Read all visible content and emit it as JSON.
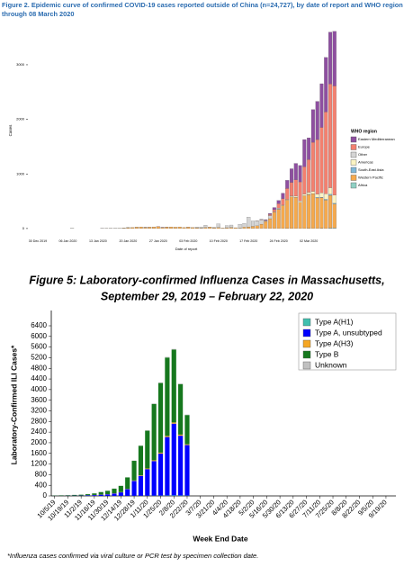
{
  "chart_data": [
    {
      "type": "bar",
      "stacked": true,
      "title": "Figure 2. Epidemic curve of confirmed COVID-19 cases reported outside of China (n=24,727), by date of report and WHO region through 08 March 2020",
      "xlabel": "Date of report",
      "ylabel": "Cases",
      "legend_title": "WHO region",
      "legend": "right",
      "categories": [
        "30 Dec 2019",
        null,
        null,
        null,
        null,
        null,
        null,
        "06 Jan 2020",
        null,
        null,
        null,
        null,
        null,
        null,
        "13 Jan 2020",
        null,
        null,
        null,
        null,
        null,
        null,
        "20 Jan 2020",
        null,
        null,
        null,
        null,
        null,
        null,
        "27 Jan 2020",
        null,
        null,
        null,
        null,
        null,
        null,
        "03 Feb 2020",
        null,
        null,
        null,
        null,
        null,
        null,
        "10 Feb 2020",
        null,
        null,
        null,
        null,
        null,
        null,
        "17 Feb 2020",
        null,
        null,
        null,
        null,
        null,
        null,
        "24 Feb 2020",
        null,
        null,
        null,
        null,
        null,
        null,
        "02 Mar 2020",
        null,
        null,
        null,
        null,
        null,
        null
      ],
      "ylim": [
        -150,
        3700
      ],
      "yticks": [
        0,
        1000,
        2000,
        3000
      ],
      "series": [
        {
          "name": "Eastern Mediterranean",
          "color": "#8e4fa0",
          "values": [
            0,
            0,
            0,
            0,
            0,
            0,
            0,
            0,
            0,
            0,
            0,
            0,
            0,
            0,
            0,
            0,
            0,
            0,
            0,
            0,
            0,
            0,
            0,
            0,
            0,
            0,
            0,
            0,
            0,
            4,
            0,
            0,
            0,
            0,
            0,
            0,
            0,
            0,
            0,
            0,
            0,
            0,
            0,
            0,
            0,
            0,
            0,
            0,
            0,
            0,
            0,
            0,
            2,
            10,
            20,
            40,
            60,
            100,
            150,
            250,
            300,
            300,
            500,
            400,
            600,
            700,
            800,
            1000,
            950,
            1000
          ]
        },
        {
          "name": "Europe",
          "color": "#f3806f",
          "values": [
            0,
            0,
            0,
            0,
            0,
            0,
            0,
            0,
            0,
            0,
            0,
            0,
            0,
            0,
            0,
            0,
            0,
            0,
            0,
            0,
            0,
            0,
            0,
            0,
            0,
            2,
            0,
            0,
            3,
            0,
            2,
            0,
            0,
            0,
            0,
            1,
            0,
            0,
            0,
            0,
            0,
            0,
            0,
            0,
            0,
            0,
            0,
            0,
            0,
            0,
            0,
            2,
            5,
            10,
            20,
            40,
            80,
            120,
            200,
            250,
            300,
            350,
            500,
            600,
            900,
            1000,
            1200,
            1500,
            1900,
            2000
          ]
        },
        {
          "name": "Other",
          "color": "#d4d4d4",
          "values": [
            0,
            0,
            0,
            0,
            0,
            0,
            0,
            0,
            0,
            0,
            0,
            0,
            0,
            0,
            0,
            0,
            0,
            0,
            0,
            0,
            0,
            0,
            0,
            0,
            0,
            0,
            0,
            0,
            0,
            0,
            0,
            0,
            0,
            0,
            0,
            0,
            0,
            10,
            20,
            41,
            3,
            6,
            65,
            0,
            40,
            44,
            0,
            67,
            70,
            180,
            99,
            88,
            79,
            13,
            57,
            0,
            14,
            0,
            0,
            0,
            0,
            0,
            0,
            0,
            0,
            0,
            0,
            0,
            0,
            0
          ]
        },
        {
          "name": "Americas",
          "color": "#fbf3c2",
          "values": [
            0,
            0,
            0,
            0,
            0,
            0,
            0,
            0,
            0,
            0,
            0,
            0,
            0,
            0,
            0,
            0,
            0,
            0,
            0,
            0,
            0,
            2,
            0,
            1,
            0,
            0,
            1,
            0,
            0,
            0,
            1,
            0,
            0,
            0,
            0,
            0,
            0,
            0,
            0,
            0,
            0,
            0,
            0,
            0,
            0,
            0,
            0,
            0,
            0,
            0,
            0,
            0,
            0,
            0,
            0,
            5,
            10,
            8,
            12,
            15,
            20,
            25,
            30,
            35,
            40,
            60,
            80,
            100,
            120,
            150
          ]
        },
        {
          "name": "South-East Asia",
          "color": "#7fb8d8",
          "values": [
            0,
            0,
            0,
            0,
            0,
            0,
            0,
            0,
            0,
            0,
            0,
            0,
            0,
            0,
            0,
            0,
            0,
            0,
            0,
            0,
            1,
            0,
            0,
            0,
            0,
            2,
            0,
            0,
            0,
            0,
            1,
            0,
            0,
            0,
            0,
            0,
            0,
            0,
            0,
            0,
            1,
            0,
            0,
            0,
            0,
            0,
            0,
            0,
            0,
            0,
            0,
            0,
            0,
            0,
            0,
            0,
            0,
            0,
            0,
            0,
            3,
            0,
            0,
            5,
            0,
            10,
            8,
            15,
            20,
            12
          ]
        },
        {
          "name": "Western Pacific",
          "color": "#f5a94d",
          "values": [
            0,
            0,
            0,
            0,
            0,
            0,
            0,
            0,
            1,
            0,
            0,
            0,
            0,
            0,
            0,
            2,
            3,
            4,
            3,
            5,
            10,
            15,
            20,
            25,
            30,
            20,
            25,
            30,
            35,
            20,
            25,
            30,
            25,
            30,
            20,
            25,
            20,
            15,
            10,
            20,
            25,
            15,
            20,
            10,
            15,
            20,
            15,
            10,
            25,
            30,
            40,
            50,
            80,
            130,
            180,
            300,
            350,
            420,
            520,
            580,
            570,
            480,
            600,
            620,
            640,
            560,
            560,
            520,
            600,
            440
          ]
        },
        {
          "name": "Africa",
          "color": "#8fd0c4",
          "values": [
            0,
            0,
            0,
            0,
            0,
            0,
            0,
            0,
            0,
            0,
            0,
            0,
            0,
            0,
            0,
            0,
            0,
            0,
            0,
            0,
            0,
            0,
            0,
            0,
            0,
            0,
            0,
            0,
            0,
            0,
            0,
            0,
            0,
            0,
            0,
            0,
            0,
            0,
            0,
            0,
            0,
            0,
            0,
            0,
            0,
            0,
            0,
            0,
            0,
            0,
            0,
            0,
            0,
            0,
            0,
            0,
            0,
            0,
            1,
            0,
            0,
            0,
            0,
            2,
            0,
            0,
            5,
            0,
            8,
            10
          ]
        }
      ]
    },
    {
      "type": "bar",
      "stacked": true,
      "title": "Figure 5: Laboratory-confirmed Influenza Cases in Massachusetts,",
      "subtitle": "September 29, 2019 – February 22, 2020",
      "xlabel": "Week End Date",
      "ylabel": "Laboratory-Confirmed ILI Cases*",
      "legend": "upper right",
      "note": "*Influenza cases confirmed via viral culture or PCR test by specimen collection date.",
      "categories": [
        "10/5/19",
        null,
        "10/19/19",
        null,
        "11/2/19",
        null,
        "11/16/19",
        null,
        "11/30/19",
        null,
        "12/14/19",
        null,
        "12/28/19",
        null,
        "1/11/20",
        null,
        "1/25/20",
        null,
        "2/8/20",
        null,
        "2/22/20",
        null,
        "3/7/20",
        null,
        "3/21/20",
        null,
        "4/4/20",
        null,
        "4/18/20",
        null,
        "5/2/20",
        null,
        "5/16/20",
        null,
        "5/30/20",
        null,
        "6/13/20",
        null,
        "6/27/20",
        null,
        "7/11/20",
        null,
        "7/25/20",
        null,
        "8/8/20",
        null,
        "8/22/20",
        null,
        "9/5/20",
        null,
        "9/19/20",
        null
      ],
      "ylim": [
        0,
        6400
      ],
      "yticks": [
        0,
        400,
        800,
        1200,
        1600,
        2000,
        2400,
        2800,
        3200,
        3600,
        4000,
        4400,
        4800,
        5200,
        5600,
        6000,
        6400
      ],
      "series": [
        {
          "name": "Type A(H1)",
          "color": "#3fbfae",
          "values": [
            0,
            0,
            0,
            0,
            0,
            0,
            1,
            1,
            1,
            2,
            3,
            3,
            5,
            6,
            8,
            10,
            12,
            15,
            18,
            15,
            12,
            null,
            null,
            null,
            null,
            null,
            null,
            null,
            null,
            null,
            null,
            null,
            null,
            null,
            null,
            null,
            null,
            null,
            null,
            null,
            null,
            null,
            null,
            null,
            null,
            null,
            null,
            null,
            null,
            null,
            null,
            null
          ]
        },
        {
          "name": "Type A, unsubtyped",
          "color": "#0000ff",
          "values": [
            5,
            5,
            8,
            10,
            12,
            20,
            30,
            45,
            60,
            90,
            130,
            250,
            560,
            750,
            1000,
            1300,
            1580,
            2200,
            2700,
            2250,
            1900,
            null,
            null,
            null,
            null,
            null,
            null,
            null,
            null,
            null,
            null,
            null,
            null,
            null,
            null,
            null,
            null,
            null,
            null,
            null,
            null,
            null,
            null,
            null,
            null,
            null,
            null,
            null,
            null,
            null,
            null,
            null
          ]
        },
        {
          "name": "Type A(H3)",
          "color": "#f5a623",
          "values": [
            2,
            2,
            2,
            2,
            3,
            3,
            4,
            5,
            6,
            8,
            10,
            12,
            15,
            20,
            25,
            30,
            35,
            40,
            45,
            40,
            30,
            null,
            null,
            null,
            null,
            null,
            null,
            null,
            null,
            null,
            null,
            null,
            null,
            null,
            null,
            null,
            null,
            null,
            null,
            null,
            null,
            null,
            null,
            null,
            null,
            null,
            null,
            null,
            null,
            null,
            null,
            null
          ]
        },
        {
          "name": "Type B",
          "color": "#16781e",
          "values": [
            10,
            15,
            17,
            25,
            32,
            43,
            60,
            95,
            125,
            170,
            235,
            430,
            740,
            1110,
            1420,
            2120,
            2620,
            2950,
            2740,
            1900,
            1100,
            null,
            null,
            null,
            null,
            null,
            null,
            null,
            null,
            null,
            null,
            null,
            null,
            null,
            null,
            null,
            null,
            null,
            null,
            null,
            null,
            null,
            null,
            null,
            null,
            null,
            null,
            null,
            null,
            null,
            null,
            null
          ]
        },
        {
          "name": "Unknown",
          "color": "#c0c0c0",
          "values": [
            3,
            3,
            3,
            3,
            3,
            4,
            5,
            5,
            8,
            10,
            12,
            5,
            10,
            14,
            17,
            20,
            23,
            25,
            27,
            25,
            18,
            null,
            null,
            null,
            null,
            null,
            null,
            null,
            null,
            null,
            null,
            null,
            null,
            null,
            null,
            null,
            null,
            null,
            null,
            null,
            null,
            null,
            null,
            null,
            null,
            null,
            null,
            null,
            null,
            null,
            null,
            null
          ]
        }
      ]
    }
  ]
}
